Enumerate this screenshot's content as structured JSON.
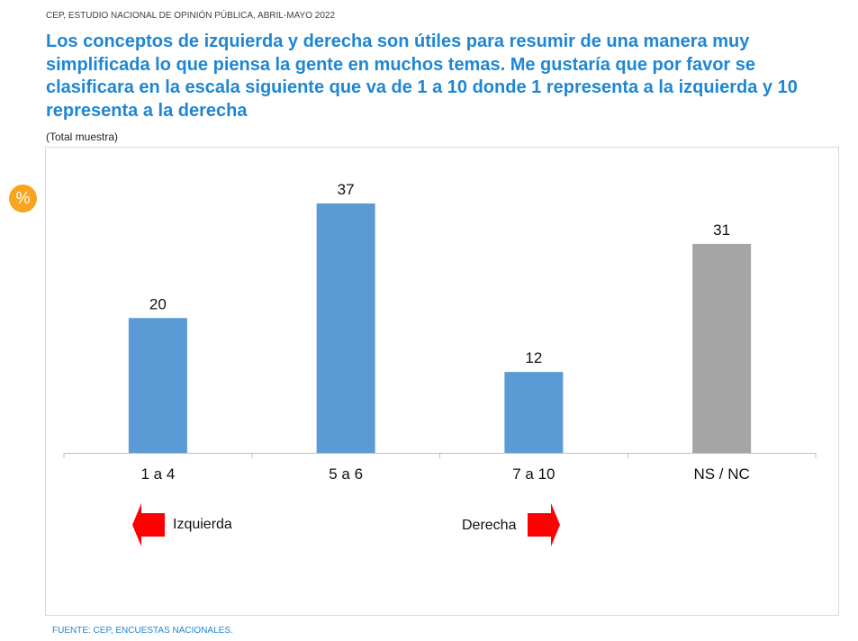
{
  "header": {
    "source": "CEP, ESTUDIO NACIONAL DE OPINIÓN PÚBLICA, ABRIL-MAYO 2022",
    "title": "Los conceptos de izquierda y derecha son útiles para resumir de una manera muy simplificada lo que piensa la gente en muchos temas. Me gustaría que por favor se clasificara en la escala siguiente que va de 1 a 10 donde 1 representa a la izquierda y 10 representa a la derecha",
    "subtitle": "(Total muestra)",
    "badge": "%"
  },
  "chart_data": {
    "type": "bar",
    "categories": [
      "1 a 4",
      "5 a 6",
      "7 a 10",
      "NS / NC"
    ],
    "values": [
      20,
      37,
      12,
      31
    ],
    "colors": [
      "#5b9bd5",
      "#5b9bd5",
      "#5b9bd5",
      "#a5a5a5"
    ],
    "ylim": [
      0,
      40
    ],
    "grid": false,
    "annotations": {
      "left": "Izquierda",
      "right": "Derecha"
    }
  },
  "colors": {
    "arrow": "#ff0000",
    "title": "#1f86d3",
    "badge": "#f7a51d"
  },
  "footer": {
    "source": "FUENTE: CEP, ENCUESTAS NACIONALES."
  }
}
